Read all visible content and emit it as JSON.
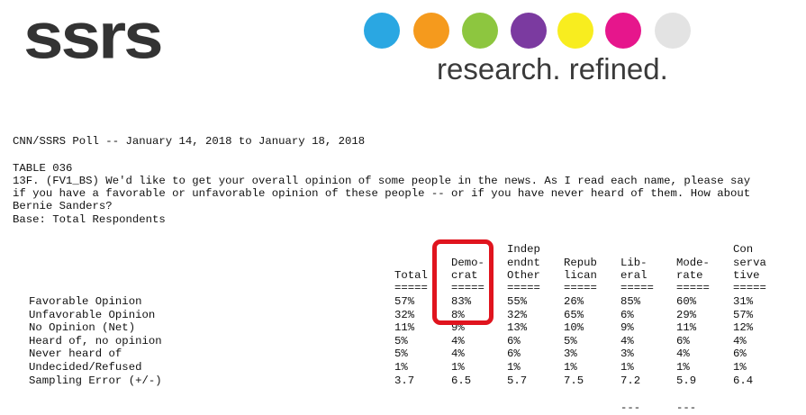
{
  "logo": {
    "wordmark": "ssrs",
    "tagline": "research. refined.",
    "dot_colors": [
      "#2aa7e2",
      "#f59a1d",
      "#8dc63f",
      "#7b3aa0",
      "#f8ed1f",
      "#e6168c",
      "#e3e3e3"
    ]
  },
  "poll_title": "CNN/SSRS Poll -- January 14, 2018 to January 18, 2018",
  "table_id": "TABLE 036",
  "question_lines": [
    "13F. (FV1_BS) We'd like to get your overall opinion of some people in the news. As I read each name, please say",
    "if you have a favorable or unfavorable opinion of these people -- or if you have never heard of them. How about",
    "Bernie Sanders?"
  ],
  "base": "Base: Total Respondents",
  "columns": [
    {
      "header": [
        "",
        "",
        "Total"
      ],
      "rule": "====="
    },
    {
      "header": [
        "",
        "Demo-",
        "crat"
      ],
      "rule": "====="
    },
    {
      "header": [
        "Indep",
        "endnt",
        "Other"
      ],
      "rule": "====="
    },
    {
      "header": [
        "",
        "Repub",
        "lican"
      ],
      "rule": "====="
    },
    {
      "header": [
        "",
        "Lib-",
        "eral"
      ],
      "rule": "====="
    },
    {
      "header": [
        "",
        "Mode-",
        "rate"
      ],
      "rule": "====="
    },
    {
      "header": [
        "Con",
        "serva",
        "tive"
      ],
      "rule": "====="
    }
  ],
  "rows": [
    {
      "label": "Favorable Opinion",
      "values": [
        "57%",
        "83%",
        "55%",
        "26%",
        "85%",
        "60%",
        "31%"
      ]
    },
    {
      "label": "Unfavorable Opinion",
      "values": [
        "32%",
        "8%",
        "32%",
        "65%",
        "6%",
        "29%",
        "57%"
      ]
    },
    {
      "label": "No Opinion (Net)",
      "values": [
        "11%",
        "9%",
        "13%",
        "10%",
        "9%",
        "11%",
        "12%"
      ]
    },
    {
      "label": "Heard of, no opinion",
      "values": [
        "5%",
        "4%",
        "6%",
        "5%",
        "4%",
        "6%",
        "4%"
      ]
    },
    {
      "label": "Never heard of",
      "values": [
        "5%",
        "4%",
        "6%",
        "3%",
        "3%",
        "4%",
        "6%"
      ]
    },
    {
      "label": "Undecided/Refused",
      "values": [
        "1%",
        "1%",
        "1%",
        "1%",
        "1%",
        "1%",
        "1%"
      ]
    },
    {
      "label": "Sampling Error (+/-)",
      "values": [
        "3.7",
        "6.5",
        "5.7",
        "7.5",
        "7.2",
        "5.9",
        "6.4"
      ]
    }
  ],
  "trailing_marks": [
    "---",
    "---"
  ],
  "highlight_color": "#e0141e"
}
